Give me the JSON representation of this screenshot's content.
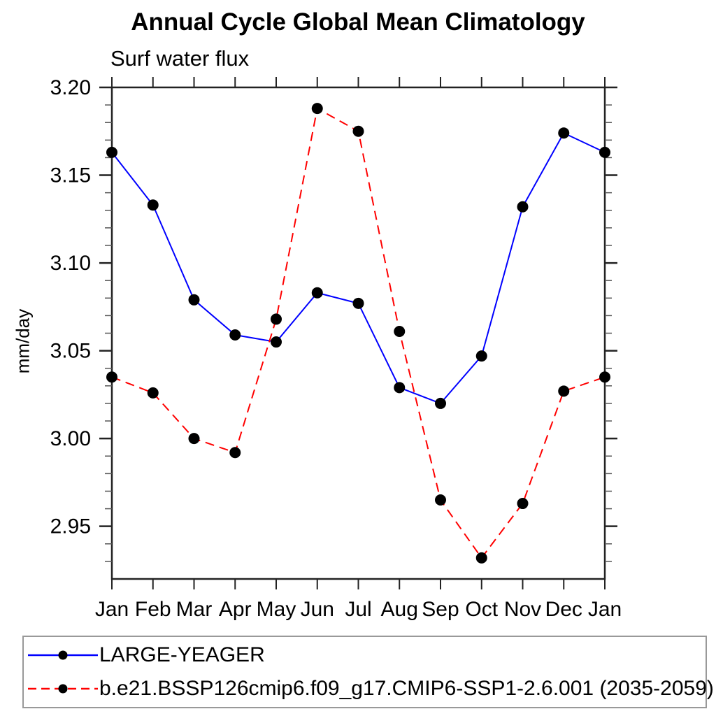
{
  "title": "Annual Cycle Global Mean Climatology",
  "subtitle": "Surf water flux",
  "ylabel": "mm/day",
  "colors": {
    "series1_line": "#0000ff",
    "series2_line": "#ff0000",
    "marker": "#000000",
    "axis": "#222222",
    "minor_tick": "#555555",
    "text": "#000000",
    "legend_border": "#999999",
    "background": "#ffffff"
  },
  "chart_data": {
    "type": "line",
    "title": "Annual Cycle Global Mean Climatology",
    "subtitle": "Surf water flux",
    "xlabel": "",
    "ylabel": "mm/day",
    "categories": [
      "Jan",
      "Feb",
      "Mar",
      "Apr",
      "May",
      "Jun",
      "Jul",
      "Aug",
      "Sep",
      "Oct",
      "Nov",
      "Dec",
      "Jan"
    ],
    "ylim": [
      2.92,
      3.2
    ],
    "yticks_major": [
      2.95,
      3.0,
      3.05,
      3.1,
      3.15,
      3.2
    ],
    "ytick_minor_step": 0.01,
    "grid": false,
    "legend_position": "bottom",
    "series": [
      {
        "name": "LARGE-YEAGER",
        "color": "#0000ff",
        "style": "solid",
        "marker": "circle",
        "marker_color": "#000000",
        "values": [
          3.163,
          3.133,
          3.079,
          3.059,
          3.055,
          3.083,
          3.077,
          3.029,
          3.02,
          3.047,
          3.132,
          3.174,
          3.163
        ]
      },
      {
        "name": "b.e21.BSSP126cmip6.f09_g17.CMIP6-SSP1-2.6.001 (2035-2059)",
        "color": "#ff0000",
        "style": "dashed",
        "marker": "circle",
        "marker_color": "#000000",
        "values": [
          3.035,
          3.026,
          3.0,
          2.992,
          3.068,
          3.188,
          3.175,
          3.061,
          2.965,
          2.932,
          2.963,
          3.027,
          3.035
        ]
      }
    ]
  },
  "legend": {
    "items": [
      {
        "label": "LARGE-YEAGER"
      },
      {
        "label": "b.e21.BSSP126cmip6.f09_g17.CMIP6-SSP1-2.6.001 (2035-2059)"
      }
    ]
  }
}
